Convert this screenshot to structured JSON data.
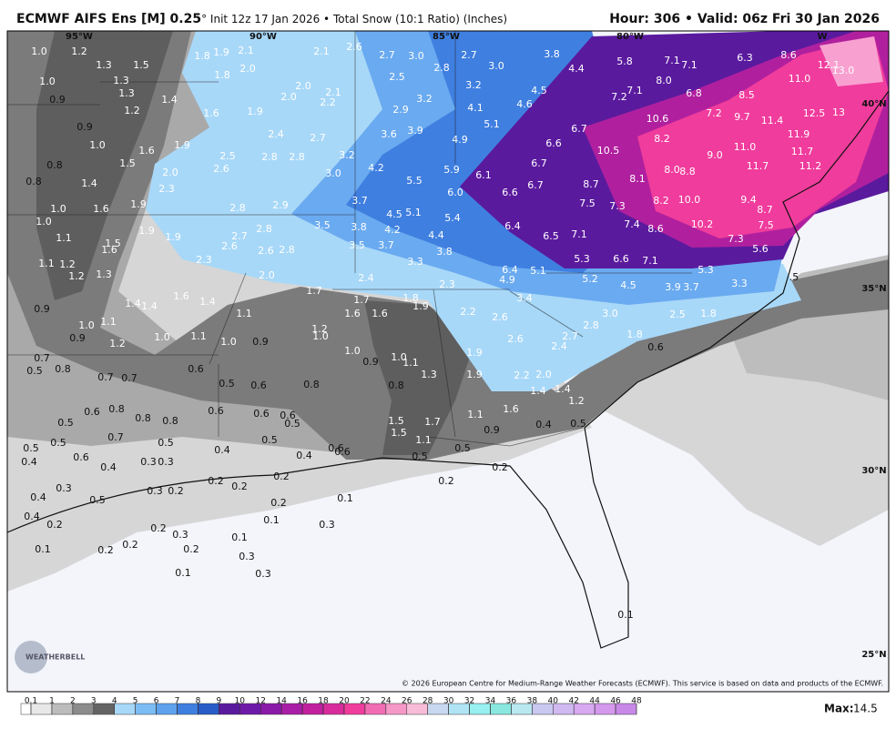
{
  "header": {
    "title": "ECMWF AIFS Ens [M] 0.25",
    "subtitle": "° Init 12z 17 Jan 2026 • Total Snow (10:1 Ratio) (Inches)",
    "valid": "Hour: 306 • Valid: 06z Fri 30 Jan 2026"
  },
  "map": {
    "lon_labels": [
      "95°W",
      "90°W",
      "85°W",
      "80°W",
      "W"
    ],
    "lat_labels": [
      "40°N",
      "35°N",
      "30°N",
      "25°N"
    ],
    "labels": [
      "1.0",
      "1.2",
      "1.3",
      "1.5",
      "1.8",
      "1.9",
      "2.1",
      "1.8",
      "2.0",
      "1.3",
      "1.3",
      "1.4",
      "1.2",
      "1.6",
      "1.9",
      "2.0",
      "2.0",
      "2.2",
      "2.1",
      "2.1",
      "2.6",
      "2.7",
      "3.0",
      "2.8",
      "2.7",
      "3.0",
      "2.5",
      "3.2",
      "2.9",
      "3.2",
      "4.5",
      "4.6",
      "4.1",
      "5.1",
      "3.8",
      "4.4",
      "5.8",
      "7.1",
      "7.1",
      "6.3",
      "8.6",
      "11.0",
      "8.0",
      "6.8",
      "8.5",
      "7.1",
      "7.2",
      "10.6",
      "7.2",
      "9.7",
      "11.4",
      "12.5",
      "13",
      "12.1",
      "13.0",
      "6.7",
      "6.6",
      "10.5",
      "8.2",
      "9.0",
      "11.0",
      "11.9",
      "11.7",
      "11.2",
      "11.7",
      "6.7",
      "8.7",
      "8.1",
      "8.0",
      "8.8",
      "6.1",
      "6.7",
      "6.6",
      "6.0",
      "5.9",
      "4.9",
      "5.5",
      "4.2",
      "3.6",
      "3.9",
      "3.2",
      "3.0",
      "3.7",
      "4.5",
      "5.1",
      "5.4",
      "7.5",
      "7.3",
      "8.2",
      "10.0",
      "9.4",
      "8.7",
      "10.2",
      "7.5",
      "7.4",
      "8.6",
      "7.3",
      "5.6",
      "6.4",
      "6.5",
      "7.1",
      "5.3",
      "6.6",
      "7.1",
      "5.3",
      "6.4",
      "5.1",
      "4.9",
      "5.2",
      "4.5",
      "3.9",
      "3.7",
      "3.3",
      ".5",
      "3.5",
      "3.8",
      "4.2",
      "4.4",
      "3.5",
      "3.7",
      "3.3",
      "3.8",
      "2.4",
      "2.3",
      "3.4",
      "2.4",
      "2.7",
      "2.8",
      "2.8",
      "2.5",
      "2.6",
      "1.9",
      "2.0",
      "1.6",
      "1.5",
      "2.3",
      "2.8",
      "2.9",
      "2.8",
      "2.7",
      "2.6",
      "2.6",
      "2.8",
      "2.3",
      "2.0",
      "1.9",
      "1.9",
      "1.5",
      "1.6",
      "1.6",
      "1.9",
      "1.4",
      "1.0",
      "1.0",
      "1.1",
      "1.1",
      "1.2",
      "1.2",
      "1.3",
      "1.0",
      "0.8",
      "0.8",
      "0.9",
      "0.9",
      "1.0",
      "1.7",
      "1.7",
      "1.8",
      "1.9",
      "1.6",
      "1.6",
      "2.2",
      "2.6",
      "2.6",
      "2.7",
      "2.4",
      "2.8",
      "3.0",
      "2.5",
      "1.8",
      "1.8",
      "0.6",
      "1.4",
      "1.4",
      "1.6",
      "1.4",
      "1.1",
      "1.0",
      "1.1",
      "0.9",
      "1.2",
      "1.0",
      "1.1",
      "1.0",
      "0.9",
      "1.2",
      "1.0",
      "1.0",
      "0.9",
      "1.1",
      "1.3",
      "1.9",
      "1.9",
      "2.2",
      "2.0",
      "1.4",
      "1.4",
      "1.2",
      "1.6",
      "0.4",
      "0.5",
      "1.1",
      "0.9",
      "1.7",
      "1.5",
      "1.5",
      "1.1",
      "0.5",
      "1.0",
      "0.8",
      "0.8",
      "0.6",
      "0.5",
      "0.6",
      "0.6",
      "0.6",
      "0.5",
      "0.9",
      "0.7",
      "0.5",
      "0.8",
      "0.7",
      "0.7",
      "0.6",
      "0.5",
      "0.6",
      "0.8",
      "0.8",
      "0.8",
      "0.5",
      "0.5",
      "0.4",
      "0.6",
      "0.7",
      "0.5",
      "0.4",
      "0.3",
      "0.3",
      "0.4",
      "0.5",
      "0.4",
      "0.6",
      "0.6",
      "0.5",
      "0.3",
      "0.4",
      "0.5",
      "0.3",
      "0.2",
      "0.2",
      "0.2",
      "0.2",
      "0.2",
      "0.4",
      "0.2",
      "0.2",
      "0.3",
      "0.1",
      "0.3",
      "0.1",
      "0.1",
      "0.1",
      "0.2",
      "0.2",
      "0.2",
      "0.3",
      "0.1",
      "0.3",
      "0.2",
      "0.2",
      "0.1"
    ]
  },
  "copyright": "© 2026 European Centre for Medium-Range Weather Forecasts (ECMWF). This service is based on data and products of the ECMWF.",
  "logo": "WEATHERBELL",
  "colorbar": {
    "ticks": [
      0.1,
      1,
      2,
      3,
      4,
      5,
      6,
      7,
      8,
      9,
      10,
      12,
      14,
      16,
      18,
      20,
      22,
      24,
      26,
      28,
      30,
      32,
      34,
      36,
      38,
      40,
      42,
      44,
      46,
      48
    ]
  },
  "max": {
    "label": "Max:",
    "value": 14.5
  }
}
